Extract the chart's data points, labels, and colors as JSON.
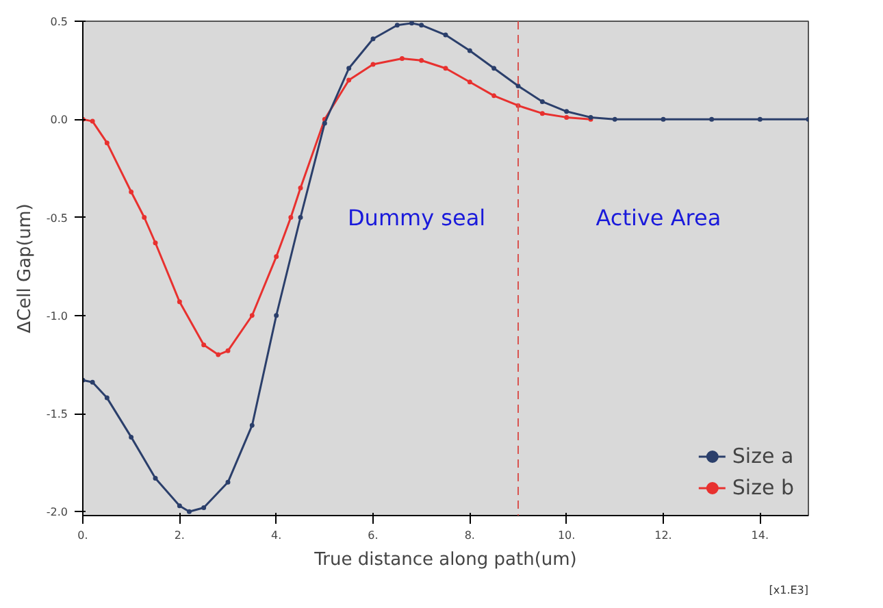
{
  "chart_data": {
    "type": "line",
    "xlabel": "True distance along path(um)",
    "ylabel": "ΔCell Gap(um)",
    "annotations": [
      "Dummy seal",
      "Active Area",
      "[x1.E3]"
    ],
    "xlim": [
      0,
      15
    ],
    "ylim": [
      -2.02,
      0.5
    ],
    "xticks": [
      {
        "value": 0,
        "label": "0."
      },
      {
        "value": 2,
        "label": "2."
      },
      {
        "value": 4,
        "label": "4."
      },
      {
        "value": 6,
        "label": "6."
      },
      {
        "value": 8,
        "label": "8."
      },
      {
        "value": 10,
        "label": "10."
      },
      {
        "value": 12,
        "label": "12."
      },
      {
        "value": 14,
        "label": "14."
      }
    ],
    "yticks": [
      {
        "value": 0.5,
        "label": "0.5"
      },
      {
        "value": 0,
        "label": "0.0"
      },
      {
        "value": -0.5,
        "label": "-0.5"
      },
      {
        "value": -1,
        "label": "-1.0"
      },
      {
        "value": -1.5,
        "label": "-1.5"
      },
      {
        "value": -2,
        "label": "-2.0"
      }
    ],
    "ref_lines": [
      {
        "axis": "x",
        "value": 9,
        "label": null,
        "color": "#d9534f",
        "line_style": "dashed"
      }
    ],
    "legend": "bottom right",
    "marker": "circle",
    "grid": false,
    "series": [
      {
        "name": "Size a",
        "color": "#2b3f6b",
        "x": [
          0,
          0.2,
          0.5,
          1,
          1.5,
          2,
          2.2,
          2.5,
          3,
          3.5,
          4,
          4.5,
          5,
          5.5,
          6,
          6.5,
          6.8,
          7,
          7.5,
          8,
          8.5,
          9,
          9.5,
          10,
          10.5,
          11,
          12,
          13,
          14,
          15
        ],
        "values": [
          -1.33,
          -1.34,
          -1.42,
          -1.62,
          -1.83,
          -1.97,
          -2.0,
          -1.98,
          -1.85,
          -1.56,
          -1.0,
          -0.5,
          -0.02,
          0.26,
          0.41,
          0.48,
          0.49,
          0.48,
          0.43,
          0.35,
          0.26,
          0.17,
          0.09,
          0.04,
          0.01,
          0,
          0,
          0,
          0,
          0
        ]
      },
      {
        "name": "Size b",
        "color": "#e8312f",
        "x": [
          0,
          0.2,
          0.5,
          1,
          1.27,
          1.5,
          2,
          2.5,
          2.8,
          3,
          3.5,
          4,
          4.3,
          4.5,
          5,
          5.5,
          6,
          6.6,
          7,
          7.5,
          8,
          8.5,
          9,
          9.5,
          10,
          10.5
        ],
        "values": [
          0,
          -0.01,
          -0.12,
          -0.37,
          -0.5,
          -0.63,
          -0.93,
          -1.15,
          -1.2,
          -1.18,
          -1.0,
          -0.7,
          -0.5,
          -0.35,
          0,
          0.2,
          0.28,
          0.31,
          0.3,
          0.26,
          0.19,
          0.12,
          0.07,
          0.03,
          0.01,
          0
        ]
      }
    ]
  }
}
